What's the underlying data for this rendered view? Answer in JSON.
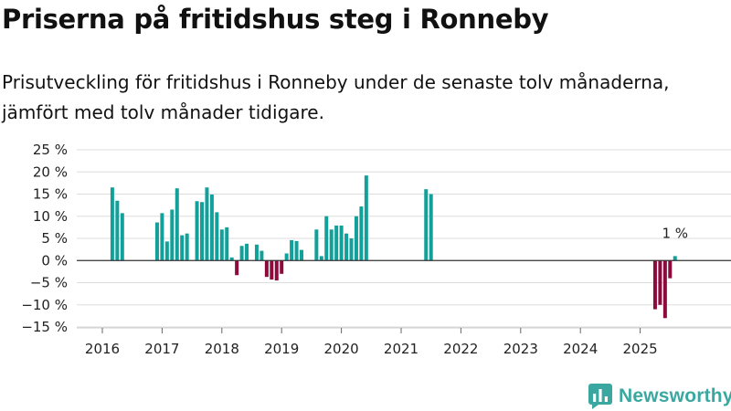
{
  "title": "Priserna på fritidshus steg i Ronneby",
  "subtitle": "Prisutveckling för fritidshus i Ronneby under de senaste tolv månaderna, jämfört med tolv månader tidigare.",
  "brand": {
    "name": "Newsworthy",
    "color": "#3aa8a0",
    "icon": "bar-chart-logo-icon"
  },
  "colors": {
    "positive": "#12a19a",
    "negative": "#8c0a3c",
    "grid": "#dddddd",
    "zero": "#333333"
  },
  "chart_data": {
    "type": "bar",
    "title": "Priserna på fritidshus steg i Ronneby",
    "xlabel": "",
    "ylabel": "",
    "ylim": [
      -15,
      25
    ],
    "y_ticks": [
      -15,
      -10,
      -5,
      0,
      5,
      10,
      15,
      20,
      25
    ],
    "y_tick_labels": [
      "−15 %",
      "−10 %",
      "−5 %",
      "0 %",
      "5 %",
      "10 %",
      "15 %",
      "20 %",
      "25 %"
    ],
    "x_ticks": [
      "2016",
      "2017",
      "2018",
      "2019",
      "2020",
      "2021",
      "2022",
      "2023",
      "2024",
      "2025"
    ],
    "x_unit": "month",
    "values": [
      {
        "date": "2016-03",
        "value": 16.5
      },
      {
        "date": "2016-04",
        "value": 13.5
      },
      {
        "date": "2016-05",
        "value": 10.7
      },
      {
        "date": "2016-12",
        "value": 8.6
      },
      {
        "date": "2017-01",
        "value": 10.7
      },
      {
        "date": "2017-02",
        "value": 4.3
      },
      {
        "date": "2017-03",
        "value": 11.5
      },
      {
        "date": "2017-04",
        "value": 16.3
      },
      {
        "date": "2017-05",
        "value": 5.7
      },
      {
        "date": "2017-06",
        "value": 6.1
      },
      {
        "date": "2017-08",
        "value": 13.4
      },
      {
        "date": "2017-09",
        "value": 13.2
      },
      {
        "date": "2017-10",
        "value": 16.5
      },
      {
        "date": "2017-11",
        "value": 14.9
      },
      {
        "date": "2017-12",
        "value": 10.9
      },
      {
        "date": "2018-01",
        "value": 7.0
      },
      {
        "date": "2018-02",
        "value": 7.5
      },
      {
        "date": "2018-03",
        "value": 0.7
      },
      {
        "date": "2018-04",
        "value": -3.3
      },
      {
        "date": "2018-05",
        "value": 3.3
      },
      {
        "date": "2018-06",
        "value": 3.8
      },
      {
        "date": "2018-08",
        "value": 3.6
      },
      {
        "date": "2018-09",
        "value": 2.2
      },
      {
        "date": "2018-10",
        "value": -3.7
      },
      {
        "date": "2018-11",
        "value": -4.3
      },
      {
        "date": "2018-12",
        "value": -4.5
      },
      {
        "date": "2019-01",
        "value": -3.0
      },
      {
        "date": "2019-02",
        "value": 1.6
      },
      {
        "date": "2019-03",
        "value": 4.6
      },
      {
        "date": "2019-04",
        "value": 4.4
      },
      {
        "date": "2019-05",
        "value": 2.4
      },
      {
        "date": "2019-08",
        "value": 7.0
      },
      {
        "date": "2019-09",
        "value": 1.0
      },
      {
        "date": "2019-10",
        "value": 10.0
      },
      {
        "date": "2019-11",
        "value": 7.0
      },
      {
        "date": "2019-12",
        "value": 7.9
      },
      {
        "date": "2020-01",
        "value": 7.9
      },
      {
        "date": "2020-02",
        "value": 6.1
      },
      {
        "date": "2020-03",
        "value": 5.0
      },
      {
        "date": "2020-04",
        "value": 10.0
      },
      {
        "date": "2020-05",
        "value": 12.2
      },
      {
        "date": "2020-06",
        "value": 19.2
      },
      {
        "date": "2021-06",
        "value": 16.1
      },
      {
        "date": "2021-07",
        "value": 15.0
      },
      {
        "date": "2025-04",
        "value": -11.0
      },
      {
        "date": "2025-05",
        "value": -10.0
      },
      {
        "date": "2025-06",
        "value": -13.0
      },
      {
        "date": "2025-07",
        "value": -4.0
      },
      {
        "date": "2025-08",
        "value": 1.0
      }
    ],
    "annotations": [
      {
        "date": "2025-08",
        "text": "1 %"
      }
    ]
  }
}
